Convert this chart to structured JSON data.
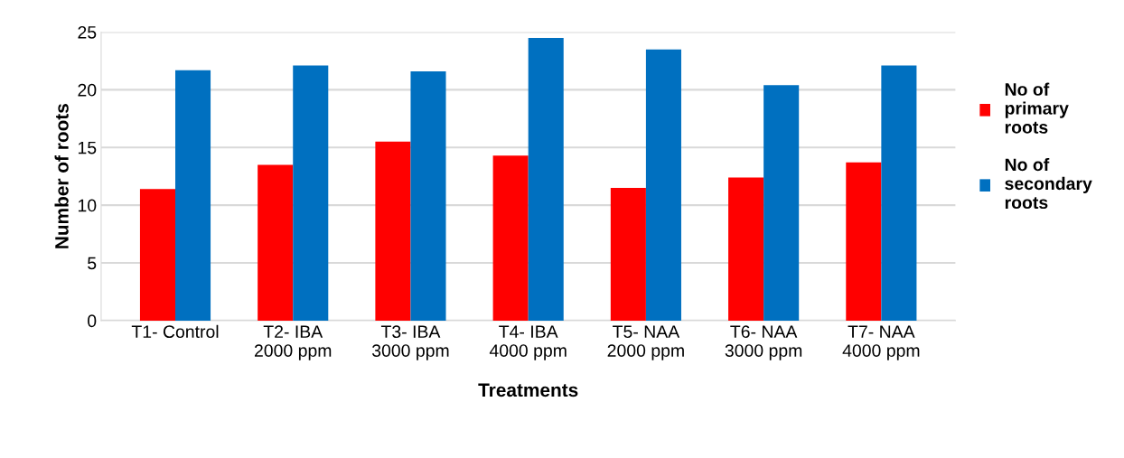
{
  "chart_data": {
    "type": "bar",
    "xlabel": "Treatments",
    "ylabel": "Number of roots",
    "categories": [
      "T1- Control",
      "T2- IBA\n2000 ppm",
      "T3- IBA\n3000 ppm",
      "T4- IBA\n4000 ppm",
      "T5- NAA\n2000 ppm",
      "T6- NAA\n3000 ppm",
      "T7- NAA\n4000 ppm"
    ],
    "series": [
      {
        "name": "No of\nprimary\nroots",
        "color": "#ff0000",
        "values": [
          11.4,
          13.5,
          15.5,
          14.3,
          11.5,
          12.4,
          13.7
        ]
      },
      {
        "name": "No of\nsecondary\nroots",
        "color": "#0070c0",
        "values": [
          21.7,
          22.1,
          21.6,
          24.5,
          23.5,
          20.4,
          22.1
        ]
      }
    ],
    "ylim": [
      0,
      25
    ],
    "yticks": [
      0,
      5,
      10,
      15,
      20,
      25
    ],
    "grid": "y",
    "legend": "right"
  }
}
